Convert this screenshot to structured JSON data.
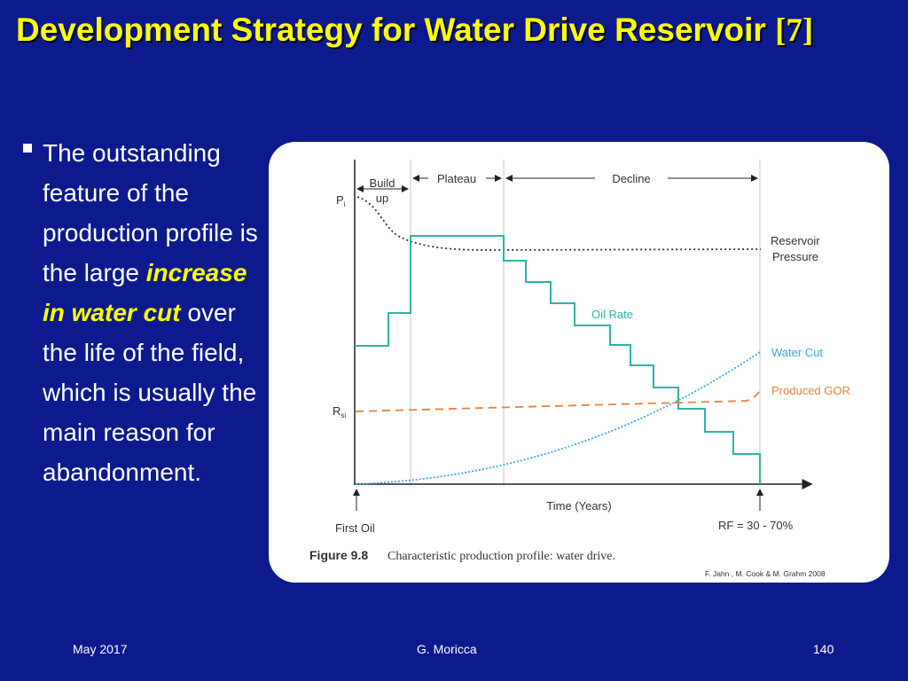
{
  "slide": {
    "title_main": "Development Strategy for Water Drive Reservoir",
    "title_ref": "[7]",
    "bullet": {
      "text_before": "The outstanding feature of the production profile is the large ",
      "highlight": "increase in water cut",
      "text_after": " over the life of the field, which is usually the main reason for abandonment."
    },
    "footer": {
      "date": "May 2017",
      "author": "G. Moricca",
      "page": "140"
    }
  },
  "figure": {
    "phase_buildup_line1": "Build",
    "phase_buildup_line2": "up",
    "phase_plateau": "Plateau",
    "phase_decline": "Decline",
    "label_pi": "P",
    "label_pi_sub": "i",
    "label_rsi": "R",
    "label_rsi_sub": "si",
    "label_reservoir_line1": "Reservoir",
    "label_reservoir_line2": "Pressure",
    "label_oil_rate": "Oil Rate",
    "label_water_cut": "Water Cut",
    "label_gor": "Produced GOR",
    "label_time": "Time (Years)",
    "label_first_oil": "First Oil",
    "label_rf": "RF = 30 - 70%",
    "caption_num": "Figure 9.8",
    "caption_text": "Characteristic production profile: water drive.",
    "credit": "F. Jahn , M. Cook & M. Grahm 2008",
    "colors": {
      "oil_rate": "#2bb5a8",
      "water_cut": "#3aa7e6",
      "gor": "#e8823a",
      "pressure": "#333333"
    }
  }
}
